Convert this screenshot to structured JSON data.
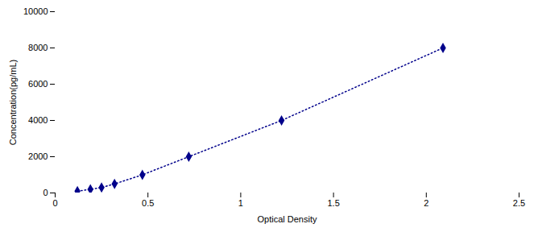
{
  "chart_data": {
    "type": "line",
    "x": [
      0.12,
      0.19,
      0.25,
      0.32,
      0.47,
      0.72,
      1.22,
      2.09
    ],
    "values": [
      100,
      200,
      300,
      500,
      1000,
      2000,
      4000,
      8000
    ],
    "color": "#00008B",
    "marker": "diamond",
    "line_style": "dotted",
    "xlabel": "Optical Density",
    "ylabel": "Concentration(pg/mL)",
    "xlim": [
      0,
      2.5
    ],
    "ylim": [
      0,
      10000
    ],
    "xticks": [
      0,
      0.5,
      1,
      1.5,
      2,
      2.5
    ],
    "yticks": [
      0,
      2000,
      4000,
      6000,
      8000,
      10000
    ]
  }
}
